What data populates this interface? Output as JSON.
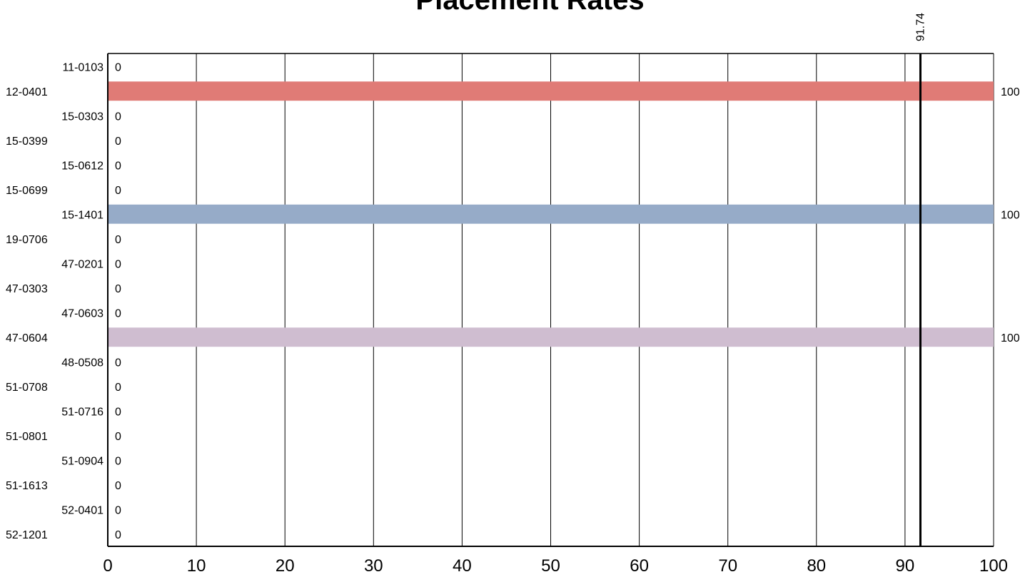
{
  "chart_data": {
    "type": "bar",
    "orientation": "horizontal",
    "title": "Placement Rates",
    "categories": [
      "11-0103",
      "12-0401",
      "15-0303",
      "15-0399",
      "15-0612",
      "15-0699",
      "15-1401",
      "19-0706",
      "47-0201",
      "47-0303",
      "47-0603",
      "47-0604",
      "48-0508",
      "51-0708",
      "51-0716",
      "51-0801",
      "51-0904",
      "51-1613",
      "52-0401",
      "52-1201"
    ],
    "values": [
      0,
      100,
      0,
      0,
      0,
      0,
      100,
      0,
      0,
      0,
      0,
      100,
      0,
      0,
      0,
      0,
      0,
      0,
      0,
      0
    ],
    "bar_colors": {
      "12-0401": "#e07b76",
      "15-1401": "#96abc8",
      "47-0604": "#cfbdd0"
    },
    "xlim": [
      0,
      100
    ],
    "xticks": [
      0,
      10,
      20,
      30,
      40,
      50,
      60,
      70,
      80,
      90,
      100
    ],
    "grid": "vertical",
    "reference_line": {
      "value": 91.74,
      "label": "91.74"
    },
    "xlabel": "",
    "ylabel": ""
  }
}
